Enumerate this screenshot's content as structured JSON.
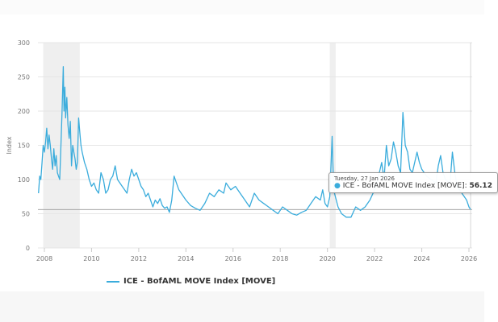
{
  "chart_data": {
    "type": "line",
    "ylabel": "Index",
    "xlabel": "",
    "ylim": [
      0,
      300
    ],
    "xlim": [
      2007.75,
      2026.1
    ],
    "yticks": [
      "0",
      "50",
      "100",
      "150",
      "200",
      "250",
      "300"
    ],
    "xticks": [
      "2008",
      "2010",
      "2012",
      "2014",
      "2016",
      "2018",
      "2020",
      "2022",
      "2024",
      "2026"
    ],
    "grid": true,
    "legend_position": "bottom-left",
    "colors": {
      "series": "#3aacdc",
      "shading": "#efefef"
    },
    "shaded_periods": [
      [
        2007.95,
        2009.5
      ],
      [
        2020.1,
        2020.35
      ]
    ],
    "series": [
      {
        "name": "ICE - BofAML MOVE Index [MOVE]",
        "points": [
          [
            2007.75,
            80
          ],
          [
            2007.8,
            105
          ],
          [
            2007.85,
            100
          ],
          [
            2007.9,
            125
          ],
          [
            2007.95,
            150
          ],
          [
            2008.0,
            140
          ],
          [
            2008.05,
            155
          ],
          [
            2008.1,
            175
          ],
          [
            2008.15,
            145
          ],
          [
            2008.2,
            165
          ],
          [
            2008.25,
            150
          ],
          [
            2008.3,
            130
          ],
          [
            2008.35,
            115
          ],
          [
            2008.4,
            145
          ],
          [
            2008.45,
            120
          ],
          [
            2008.5,
            135
          ],
          [
            2008.55,
            110
          ],
          [
            2008.6,
            105
          ],
          [
            2008.65,
            100
          ],
          [
            2008.7,
            150
          ],
          [
            2008.75,
            200
          ],
          [
            2008.8,
            265
          ],
          [
            2008.83,
            200
          ],
          [
            2008.87,
            235
          ],
          [
            2008.9,
            190
          ],
          [
            2008.95,
            220
          ],
          [
            2009.0,
            180
          ],
          [
            2009.05,
            160
          ],
          [
            2009.1,
            185
          ],
          [
            2009.15,
            120
          ],
          [
            2009.2,
            150
          ],
          [
            2009.25,
            140
          ],
          [
            2009.3,
            130
          ],
          [
            2009.35,
            115
          ],
          [
            2009.4,
            125
          ],
          [
            2009.45,
            190
          ],
          [
            2009.5,
            170
          ],
          [
            2009.55,
            150
          ],
          [
            2009.6,
            140
          ],
          [
            2009.7,
            125
          ],
          [
            2009.8,
            115
          ],
          [
            2009.9,
            100
          ],
          [
            2010.0,
            90
          ],
          [
            2010.1,
            95
          ],
          [
            2010.2,
            85
          ],
          [
            2010.3,
            80
          ],
          [
            2010.4,
            110
          ],
          [
            2010.5,
            100
          ],
          [
            2010.6,
            80
          ],
          [
            2010.7,
            85
          ],
          [
            2010.8,
            100
          ],
          [
            2010.9,
            105
          ],
          [
            2011.0,
            120
          ],
          [
            2011.1,
            100
          ],
          [
            2011.2,
            95
          ],
          [
            2011.3,
            90
          ],
          [
            2011.4,
            85
          ],
          [
            2011.5,
            80
          ],
          [
            2011.6,
            100
          ],
          [
            2011.7,
            115
          ],
          [
            2011.8,
            105
          ],
          [
            2011.9,
            110
          ],
          [
            2012.0,
            100
          ],
          [
            2012.1,
            90
          ],
          [
            2012.2,
            85
          ],
          [
            2012.3,
            75
          ],
          [
            2012.4,
            80
          ],
          [
            2012.5,
            70
          ],
          [
            2012.6,
            60
          ],
          [
            2012.7,
            70
          ],
          [
            2012.8,
            65
          ],
          [
            2012.9,
            72
          ],
          [
            2013.0,
            62
          ],
          [
            2013.1,
            58
          ],
          [
            2013.2,
            60
          ],
          [
            2013.3,
            52
          ],
          [
            2013.4,
            70
          ],
          [
            2013.5,
            105
          ],
          [
            2013.6,
            95
          ],
          [
            2013.7,
            85
          ],
          [
            2013.8,
            80
          ],
          [
            2013.9,
            75
          ],
          [
            2014.0,
            70
          ],
          [
            2014.2,
            62
          ],
          [
            2014.4,
            58
          ],
          [
            2014.6,
            55
          ],
          [
            2014.8,
            65
          ],
          [
            2015.0,
            80
          ],
          [
            2015.2,
            75
          ],
          [
            2015.4,
            85
          ],
          [
            2015.6,
            80
          ],
          [
            2015.7,
            95
          ],
          [
            2015.9,
            85
          ],
          [
            2016.1,
            90
          ],
          [
            2016.3,
            80
          ],
          [
            2016.5,
            70
          ],
          [
            2016.7,
            60
          ],
          [
            2016.9,
            80
          ],
          [
            2017.1,
            70
          ],
          [
            2017.3,
            65
          ],
          [
            2017.5,
            60
          ],
          [
            2017.7,
            55
          ],
          [
            2017.9,
            50
          ],
          [
            2018.1,
            60
          ],
          [
            2018.3,
            55
          ],
          [
            2018.5,
            50
          ],
          [
            2018.7,
            48
          ],
          [
            2018.9,
            52
          ],
          [
            2019.1,
            55
          ],
          [
            2019.3,
            65
          ],
          [
            2019.5,
            75
          ],
          [
            2019.7,
            70
          ],
          [
            2019.8,
            85
          ],
          [
            2019.9,
            65
          ],
          [
            2020.0,
            60
          ],
          [
            2020.1,
            75
          ],
          [
            2020.2,
            163
          ],
          [
            2020.25,
            100
          ],
          [
            2020.3,
            80
          ],
          [
            2020.45,
            60
          ],
          [
            2020.6,
            50
          ],
          [
            2020.8,
            45
          ],
          [
            2021.0,
            45
          ],
          [
            2021.2,
            60
          ],
          [
            2021.4,
            55
          ],
          [
            2021.6,
            60
          ],
          [
            2021.8,
            70
          ],
          [
            2022.0,
            85
          ],
          [
            2022.2,
            110
          ],
          [
            2022.3,
            125
          ],
          [
            2022.4,
            100
          ],
          [
            2022.5,
            150
          ],
          [
            2022.6,
            120
          ],
          [
            2022.7,
            130
          ],
          [
            2022.8,
            155
          ],
          [
            2022.9,
            140
          ],
          [
            2023.0,
            120
          ],
          [
            2023.1,
            110
          ],
          [
            2023.2,
            198
          ],
          [
            2023.3,
            150
          ],
          [
            2023.4,
            140
          ],
          [
            2023.5,
            115
          ],
          [
            2023.6,
            110
          ],
          [
            2023.8,
            140
          ],
          [
            2023.9,
            125
          ],
          [
            2024.0,
            115
          ],
          [
            2024.2,
            105
          ],
          [
            2024.4,
            100
          ],
          [
            2024.6,
            95
          ],
          [
            2024.7,
            120
          ],
          [
            2024.8,
            135
          ],
          [
            2024.9,
            110
          ],
          [
            2025.0,
            100
          ],
          [
            2025.2,
            95
          ],
          [
            2025.3,
            140
          ],
          [
            2025.4,
            110
          ],
          [
            2025.5,
            90
          ],
          [
            2025.6,
            85
          ],
          [
            2025.8,
            75
          ],
          [
            2025.9,
            70
          ],
          [
            2026.0,
            60
          ],
          [
            2026.07,
            56.12
          ]
        ]
      }
    ],
    "tooltip": {
      "date": "Tuesday, 27 Jan 2026",
      "series": "ICE - BofAML MOVE Index [MOVE]",
      "value": "56.12",
      "x": 2026.07,
      "y": 56.12
    }
  }
}
